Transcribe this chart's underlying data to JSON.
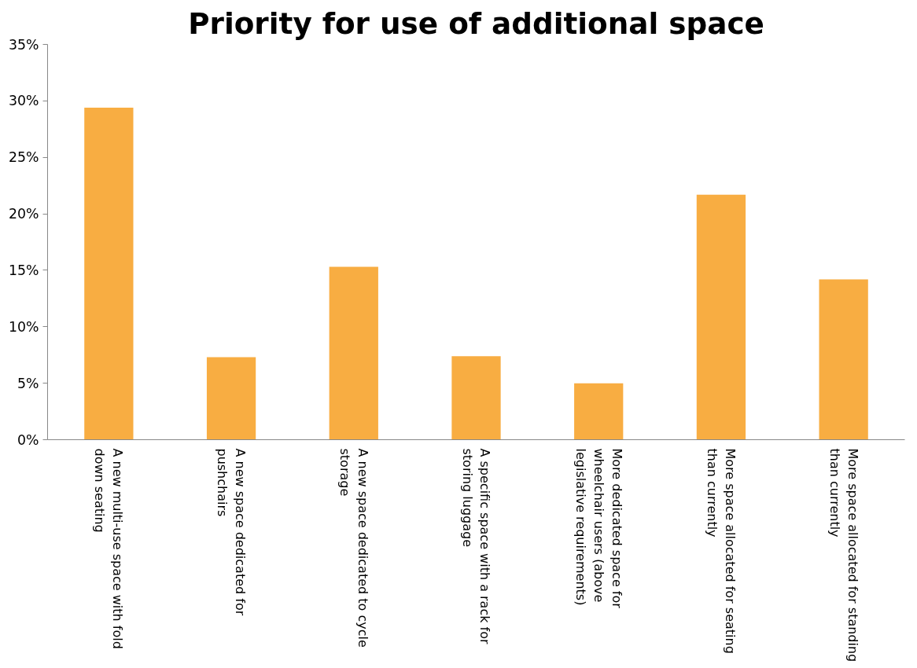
{
  "chart_data": {
    "type": "bar",
    "title": "Priority for use of additional space",
    "categories": [
      "A new multi-use space with fold down seating",
      "A new space dedicated for pushchairs",
      "A new space dedicated to cycle storage",
      "A specific space with a rack for storing luggage",
      "More dedicated space for wheelchair users (above legislative requirements)",
      "More space allocated for seating than currently",
      "More space allocated for standing than currently"
    ],
    "values": [
      29.4,
      7.3,
      15.3,
      7.4,
      5.0,
      21.7,
      14.2
    ],
    "color": "#f8ad42",
    "ylim": [
      0,
      35
    ],
    "yticks": [
      {
        "value": 0,
        "label": "0%"
      },
      {
        "value": 5,
        "label": "5%"
      },
      {
        "value": 10,
        "label": "10%"
      },
      {
        "value": 15,
        "label": "15%"
      },
      {
        "value": 20,
        "label": "20%"
      },
      {
        "value": 25,
        "label": "25%"
      },
      {
        "value": 30,
        "label": "30%"
      },
      {
        "value": 35,
        "label": "35%"
      }
    ],
    "grid": false
  }
}
